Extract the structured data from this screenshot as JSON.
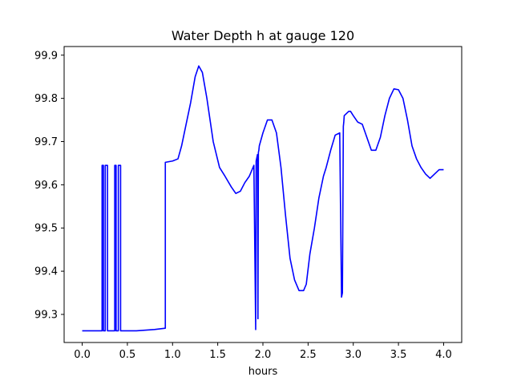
{
  "chart_data": {
    "type": "line",
    "title": "Water Depth h at gauge 120",
    "xlabel": "hours",
    "ylabel": "",
    "xlim": [
      -0.2,
      4.2
    ],
    "ylim": [
      99.235,
      99.92
    ],
    "xticks": [
      0.0,
      0.5,
      1.0,
      1.5,
      2.0,
      2.5,
      3.0,
      3.5,
      4.0
    ],
    "xtick_labels": [
      "0.0",
      "0.5",
      "1.0",
      "1.5",
      "2.0",
      "2.5",
      "3.0",
      "3.5",
      "4.0"
    ],
    "yticks": [
      99.3,
      99.4,
      99.5,
      99.6,
      99.7,
      99.8,
      99.9
    ],
    "ytick_labels": [
      "99.3",
      "99.4",
      "99.5",
      "99.6",
      "99.7",
      "99.8",
      "99.9"
    ],
    "grid": false,
    "color": "#0000ff",
    "series": [
      {
        "x": [
          0.0,
          0.22,
          0.22,
          0.235,
          0.235,
          0.255,
          0.255,
          0.28,
          0.28,
          0.29,
          0.29,
          0.36,
          0.36,
          0.375,
          0.375,
          0.4,
          0.4,
          0.425,
          0.425,
          0.44,
          0.44,
          0.6,
          0.8,
          0.92,
          0.92,
          1.0,
          1.06,
          1.1,
          1.15,
          1.2,
          1.25,
          1.29,
          1.33,
          1.38,
          1.45,
          1.52,
          1.58,
          1.65,
          1.7,
          1.75,
          1.8,
          1.85,
          1.9,
          1.92,
          1.925,
          1.93,
          1.94,
          1.945,
          1.95,
          1.955,
          1.96,
          2.0,
          2.05,
          2.1,
          2.15,
          2.2,
          2.25,
          2.3,
          2.35,
          2.4,
          2.45,
          2.48,
          2.52,
          2.57,
          2.62,
          2.67,
          2.7,
          2.75,
          2.8,
          2.85,
          2.87,
          2.875,
          2.88,
          2.89,
          2.895,
          2.9,
          2.95,
          2.97,
          3.0,
          3.05,
          3.1,
          3.15,
          3.2,
          3.25,
          3.3,
          3.35,
          3.4,
          3.45,
          3.5,
          3.55,
          3.6,
          3.65,
          3.7,
          3.75,
          3.8,
          3.85,
          3.9,
          3.95,
          4.0
        ],
        "y": [
          99.262,
          99.262,
          99.645,
          99.645,
          99.262,
          99.262,
          99.645,
          99.645,
          99.262,
          99.262,
          99.262,
          99.262,
          99.645,
          99.645,
          99.262,
          99.262,
          99.645,
          99.645,
          99.262,
          99.262,
          99.262,
          99.262,
          99.265,
          99.268,
          99.652,
          99.655,
          99.66,
          99.69,
          99.74,
          99.79,
          99.85,
          99.875,
          99.86,
          99.8,
          99.7,
          99.64,
          99.62,
          99.595,
          99.58,
          99.585,
          99.605,
          99.62,
          99.645,
          99.265,
          99.655,
          99.66,
          99.67,
          99.29,
          99.675,
          99.68,
          99.69,
          99.72,
          99.75,
          99.75,
          99.72,
          99.64,
          99.53,
          99.43,
          99.38,
          99.355,
          99.355,
          99.37,
          99.44,
          99.5,
          99.57,
          99.62,
          99.64,
          99.68,
          99.715,
          99.72,
          99.34,
          99.345,
          99.35,
          99.735,
          99.745,
          99.76,
          99.77,
          99.77,
          99.76,
          99.745,
          99.74,
          99.71,
          99.68,
          99.68,
          99.71,
          99.76,
          99.8,
          99.822,
          99.82,
          99.8,
          99.75,
          99.69,
          99.66,
          99.64,
          99.625,
          99.615,
          99.625,
          99.635,
          99.635
        ]
      }
    ]
  }
}
